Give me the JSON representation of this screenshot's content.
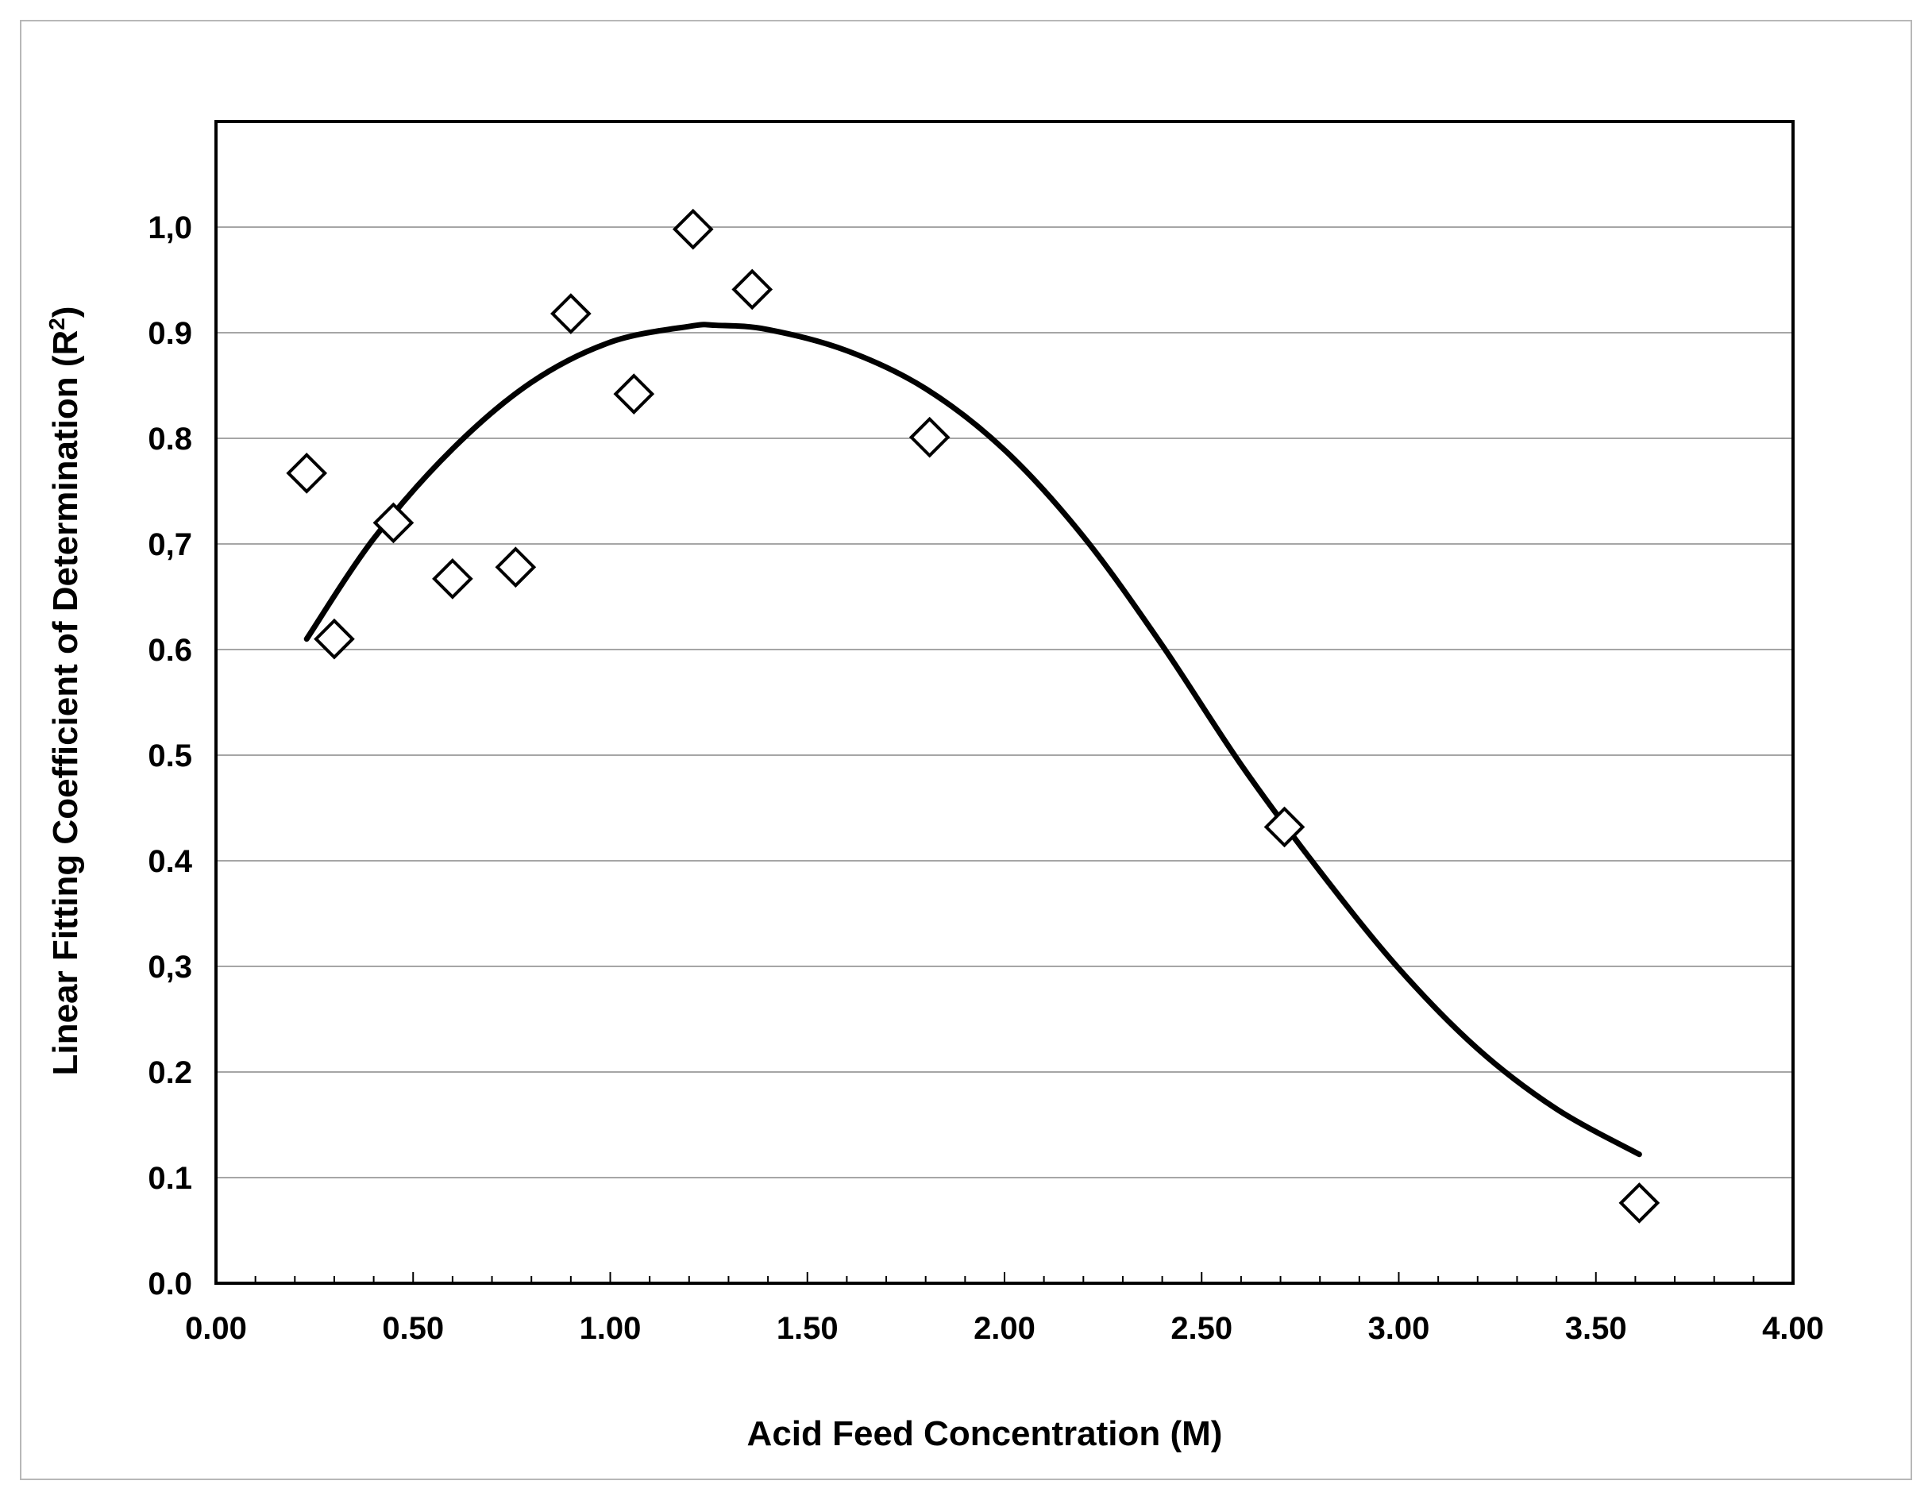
{
  "chart_data": {
    "type": "scatter",
    "title": "",
    "xlabel": "Acid Feed Concentration  (M)",
    "ylabel_main": "Linear Fitting  Coefficient of Determination  (R",
    "ylabel_sup": "2",
    "ylabel_end": ")",
    "xlim": [
      0,
      4
    ],
    "ylim": [
      0,
      1.0
    ],
    "grid": "horizontal",
    "x_tick_labels": [
      "0.00",
      "0.50",
      "1.00",
      "1.50",
      "2.00",
      "2.50",
      "3.00",
      "3.50",
      "4.00"
    ],
    "x_tick_values": [
      0,
      0.5,
      1.0,
      1.5,
      2.0,
      2.5,
      3.0,
      3.5,
      4.0
    ],
    "y_tick_labels": [
      "0.0",
      "0.1",
      "0.2",
      "0,3",
      "0.4",
      "0.5",
      "0.6",
      "0,7",
      "0.8",
      "0.9",
      "1,0"
    ],
    "y_tick_values": [
      0,
      0.1,
      0.2,
      0.3,
      0.4,
      0.5,
      0.6,
      0.7,
      0.8,
      0.9,
      1.0
    ],
    "points": {
      "x": [
        0.23,
        0.3,
        0.45,
        0.6,
        0.76,
        0.9,
        1.06,
        1.21,
        1.36,
        1.81,
        2.71,
        3.61
      ],
      "y": [
        0.767,
        0.61,
        0.72,
        0.667,
        0.678,
        0.918,
        0.842,
        0.998,
        0.941,
        0.801,
        0.432,
        0.076
      ]
    },
    "fit_curve": {
      "x": [
        0.23,
        0.4,
        0.6,
        0.8,
        1.0,
        1.2,
        1.27,
        1.4,
        1.6,
        1.8,
        2.0,
        2.2,
        2.4,
        2.6,
        2.8,
        3.0,
        3.2,
        3.4,
        3.61
      ],
      "y": [
        0.61,
        0.705,
        0.79,
        0.853,
        0.891,
        0.906,
        0.907,
        0.903,
        0.883,
        0.847,
        0.789,
        0.707,
        0.604,
        0.491,
        0.39,
        0.298,
        0.222,
        0.165,
        0.122
      ]
    },
    "marker": "hollow-diamond",
    "colors": {
      "marker": "#000000",
      "curve": "#000000",
      "grid": "#a6a6a6"
    }
  }
}
